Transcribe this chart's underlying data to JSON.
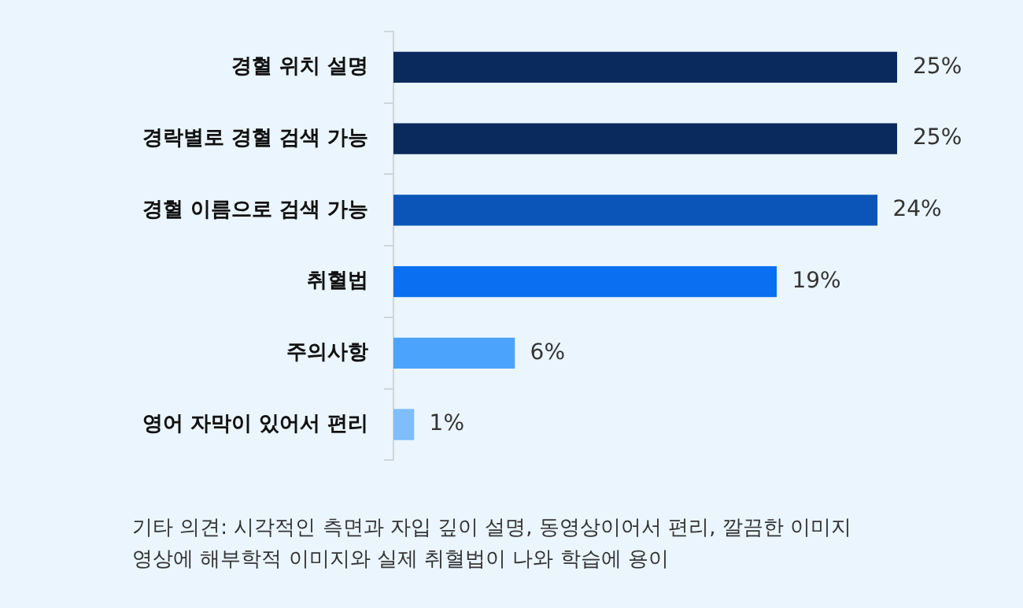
{
  "chart_data": {
    "type": "bar",
    "orientation": "horizontal",
    "categories": [
      "경혈 위치 설명",
      "경락별로 경혈 검색 가능",
      "경혈 이름으로 검색 가능",
      "취혈법",
      "주의사항",
      "영어 자막이 있어서 편리"
    ],
    "values": [
      25,
      25,
      24,
      19,
      6,
      1
    ],
    "colors": [
      "#0a2a5e",
      "#0a2a5e",
      "#0b55b8",
      "#0a6ff0",
      "#4ca3fb",
      "#7fbdfb"
    ],
    "value_labels": [
      "25%",
      "25%",
      "24%",
      "19%",
      "6%",
      "1%"
    ],
    "legend": false,
    "annotations": [
      "기타 의견: 시각적인 측면과 자입 깊이 설명, 동영상이어서 편리, 깔끔한 이미지",
      "영상에 해부학적 이미지와 실제 취혈법이 나와 학습에 용이"
    ]
  }
}
